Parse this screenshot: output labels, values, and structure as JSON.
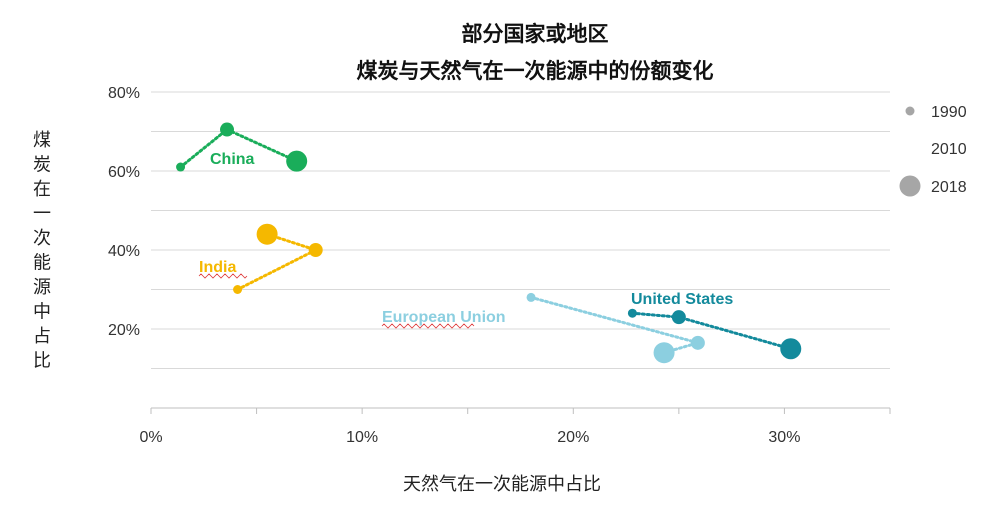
{
  "chart_data": {
    "type": "scatter",
    "title_lines": [
      "部分国家或地区",
      "煤炭与天然气在一次能源中的份额变化"
    ],
    "xlabel": "天然气在一次能源中占比",
    "ylabel": "煤炭在一次能源中占比",
    "xlim": [
      0,
      35
    ],
    "ylim": [
      0,
      80
    ],
    "x_ticks": [
      "0%",
      "10%",
      "20%",
      "30%"
    ],
    "x_tick_values": [
      0,
      10,
      20,
      30
    ],
    "y_ticks": [
      "20%",
      "40%",
      "60%",
      "80%"
    ],
    "y_tick_values": [
      20,
      40,
      60,
      80
    ],
    "grid": "horizontal",
    "legend": {
      "position": "right",
      "entries": [
        {
          "label": "1990",
          "size": "small"
        },
        {
          "label": "2010",
          "size": "medium"
        },
        {
          "label": "2018",
          "size": "large"
        }
      ],
      "color": "#a6a6a6"
    },
    "series": [
      {
        "name": "China",
        "color": "#1aad5a",
        "points": [
          {
            "year": "1990",
            "x": 1.4,
            "y": 61
          },
          {
            "year": "2010",
            "x": 3.6,
            "y": 70.5
          },
          {
            "year": "2018",
            "x": 6.9,
            "y": 62.5
          }
        ]
      },
      {
        "name": "India",
        "color": "#f5b800",
        "points": [
          {
            "year": "1990",
            "x": 4.1,
            "y": 30
          },
          {
            "year": "2010",
            "x": 7.8,
            "y": 40
          },
          {
            "year": "2018",
            "x": 5.5,
            "y": 44
          }
        ]
      },
      {
        "name": "United States",
        "color": "#138a9c",
        "points": [
          {
            "year": "1990",
            "x": 22.8,
            "y": 24
          },
          {
            "year": "2010",
            "x": 25.0,
            "y": 23
          },
          {
            "year": "2018",
            "x": 30.3,
            "y": 15
          }
        ]
      },
      {
        "name": "European Union",
        "color": "#8ccfe0",
        "points": [
          {
            "year": "1990",
            "x": 18.0,
            "y": 28
          },
          {
            "year": "2010",
            "x": 25.9,
            "y": 16.5
          },
          {
            "year": "2018",
            "x": 24.3,
            "y": 14
          }
        ]
      }
    ]
  }
}
